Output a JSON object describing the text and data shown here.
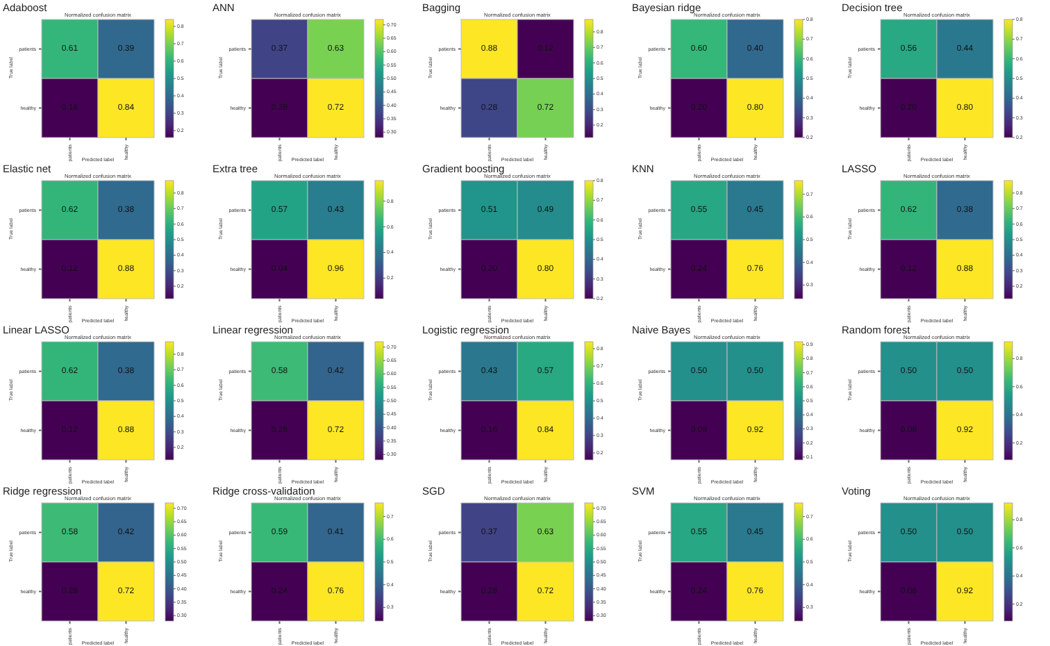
{
  "chart_data": [
    {
      "type": "heatmap",
      "title": "Adaboost",
      "subtitle": "Normalized confusion matrix",
      "xlabel": "Predicted label",
      "ylabel": "True label",
      "categories": [
        "patients",
        "healthy"
      ],
      "y_categories": [
        "patients",
        "healthy"
      ],
      "cells": [
        [
          0.61,
          0.39
        ],
        [
          0.16,
          0.84
        ]
      ],
      "cell_labels": [
        [
          "0.61",
          "0.39"
        ],
        [
          "0.16",
          "0.84"
        ]
      ],
      "clim": [
        0.16,
        0.84
      ],
      "cticks": [
        0.2,
        0.3,
        0.4,
        0.5,
        0.6,
        0.7,
        0.8
      ]
    },
    {
      "type": "heatmap",
      "title": "ANN",
      "subtitle": "Normalized confusion matrix",
      "xlabel": "Predicted label",
      "ylabel": "True label",
      "categories": [
        "patients",
        "healthy"
      ],
      "y_categories": [
        "patients",
        "healthy"
      ],
      "cells": [
        [
          0.37,
          0.63
        ],
        [
          0.28,
          0.72
        ]
      ],
      "cell_labels": [
        [
          "0.37",
          "0.63"
        ],
        [
          "0.28",
          "0.72"
        ]
      ],
      "clim": [
        0.28,
        0.72
      ],
      "cticks": [
        {
          "value": 0.3,
          "label": "0.30"
        },
        {
          "value": 0.35,
          "label": "0.35"
        },
        {
          "value": 0.4,
          "label": "0.40"
        },
        {
          "value": 0.45,
          "label": "0.45"
        },
        {
          "value": 0.5,
          "label": "0.50"
        },
        {
          "value": 0.55,
          "label": "0.55"
        },
        {
          "value": 0.6,
          "label": "0.60"
        },
        {
          "value": 0.65,
          "label": "0.65"
        },
        {
          "value": 0.7,
          "label": "0.70"
        }
      ]
    },
    {
      "type": "heatmap",
      "title": "Bagging",
      "subtitle": "Normalized confusion matrix",
      "xlabel": "Predicted label",
      "ylabel": "True label",
      "categories": [
        "patients",
        "healthy"
      ],
      "y_categories": [
        "patients",
        "healthy"
      ],
      "cells": [
        [
          0.88,
          0.12
        ],
        [
          0.28,
          0.72
        ]
      ],
      "cell_labels": [
        [
          "0.88",
          "0.12"
        ],
        [
          "0.28",
          "0.72"
        ]
      ],
      "clim": [
        0.12,
        0.88
      ],
      "cticks": [
        0.2,
        0.3,
        0.4,
        0.5,
        0.6,
        0.7,
        0.8
      ]
    },
    {
      "type": "heatmap",
      "title": "Bayesian ridge",
      "subtitle": "Normalized confusion matrix",
      "xlabel": "Predicted label",
      "ylabel": "True label",
      "categories": [
        "patients",
        "healthy"
      ],
      "y_categories": [
        "patients",
        "healthy"
      ],
      "cells": [
        [
          0.6,
          0.4
        ],
        [
          0.2,
          0.8
        ]
      ],
      "cell_labels": [
        [
          "0.60",
          "0.40"
        ],
        [
          "0.20",
          "0.80"
        ]
      ],
      "clim": [
        0.2,
        0.8
      ],
      "cticks": [
        0.2,
        0.3,
        0.4,
        0.5,
        0.6,
        0.7,
        0.8
      ]
    },
    {
      "type": "heatmap",
      "title": "Decision tree",
      "subtitle": "Normalized confusion matrix",
      "xlabel": "Predicted label",
      "ylabel": "True label",
      "categories": [
        "patients",
        "healthy"
      ],
      "y_categories": [
        "patients",
        "healthy"
      ],
      "cells": [
        [
          0.56,
          0.44
        ],
        [
          0.2,
          0.8
        ]
      ],
      "cell_labels": [
        [
          "0.56",
          "0.44"
        ],
        [
          "0.20",
          "0.80"
        ]
      ],
      "clim": [
        0.2,
        0.8
      ],
      "cticks": [
        0.2,
        0.3,
        0.4,
        0.5,
        0.6,
        0.7,
        0.8
      ]
    },
    {
      "type": "heatmap",
      "title": "Elastic net",
      "subtitle": "Normalized confusion matrix",
      "xlabel": "Predicted label",
      "ylabel": "True label",
      "categories": [
        "patients",
        "healthy"
      ],
      "y_categories": [
        "patients",
        "healthy"
      ],
      "cells": [
        [
          0.62,
          0.38
        ],
        [
          0.12,
          0.88
        ]
      ],
      "cell_labels": [
        [
          "0.62",
          "0.38"
        ],
        [
          "0.12",
          "0.88"
        ]
      ],
      "clim": [
        0.12,
        0.88
      ],
      "cticks": [
        0.2,
        0.3,
        0.4,
        0.5,
        0.6,
        0.7,
        0.8
      ]
    },
    {
      "type": "heatmap",
      "title": "Extra tree",
      "subtitle": "Normalized confusion matrix",
      "xlabel": "Predicted label",
      "ylabel": "True label",
      "categories": [
        "patients",
        "healthy"
      ],
      "y_categories": [
        "patients",
        "healthy"
      ],
      "cells": [
        [
          0.57,
          0.43
        ],
        [
          0.04,
          0.96
        ]
      ],
      "cell_labels": [
        [
          "0.57",
          "0.43"
        ],
        [
          "0.04",
          "0.96"
        ]
      ],
      "clim": [
        0.04,
        0.96
      ],
      "cticks": [
        0.2,
        0.4,
        0.6,
        0.8
      ]
    },
    {
      "type": "heatmap",
      "title": "Gradient boosting",
      "subtitle": "Normalized confusion matrix",
      "xlabel": "Predicted label",
      "ylabel": "True label",
      "categories": [
        "patients",
        "healthy"
      ],
      "y_categories": [
        "patients",
        "healthy"
      ],
      "cells": [
        [
          0.51,
          0.49
        ],
        [
          0.2,
          0.8
        ]
      ],
      "cell_labels": [
        [
          "0.51",
          "0.49"
        ],
        [
          "0.20",
          "0.80"
        ]
      ],
      "clim": [
        0.2,
        0.8
      ],
      "cticks": [
        0.2,
        0.3,
        0.4,
        0.5,
        0.6,
        0.7,
        0.8
      ]
    },
    {
      "type": "heatmap",
      "title": "KNN",
      "subtitle": "Normalized confusion matrix",
      "xlabel": "Predicted label",
      "ylabel": "True label",
      "categories": [
        "patients",
        "healthy"
      ],
      "y_categories": [
        "patients",
        "healthy"
      ],
      "cells": [
        [
          0.55,
          0.45
        ],
        [
          0.24,
          0.76
        ]
      ],
      "cell_labels": [
        [
          "0.55",
          "0.45"
        ],
        [
          "0.24",
          "0.76"
        ]
      ],
      "clim": [
        0.24,
        0.76
      ],
      "cticks": [
        0.3,
        0.4,
        0.5,
        0.6,
        0.7
      ]
    },
    {
      "type": "heatmap",
      "title": "LASSO",
      "subtitle": "Normalized confusion matrix",
      "xlabel": "Predicted label",
      "ylabel": "True label",
      "categories": [
        "patients",
        "healthy"
      ],
      "y_categories": [
        "patients",
        "healthy"
      ],
      "cells": [
        [
          0.62,
          0.38
        ],
        [
          0.12,
          0.88
        ]
      ],
      "cell_labels": [
        [
          "0.62",
          "0.38"
        ],
        [
          "0.12",
          "0.88"
        ]
      ],
      "clim": [
        0.12,
        0.88
      ],
      "cticks": [
        0.2,
        0.3,
        0.4,
        0.5,
        0.6,
        0.7,
        0.8
      ]
    },
    {
      "type": "heatmap",
      "title": "Linear LASSO",
      "subtitle": "Normalized confusion matrix",
      "xlabel": "Predicted label",
      "ylabel": "True label",
      "categories": [
        "patients",
        "healthy"
      ],
      "y_categories": [
        "patients",
        "healthy"
      ],
      "cells": [
        [
          0.62,
          0.38
        ],
        [
          0.12,
          0.88
        ]
      ],
      "cell_labels": [
        [
          "0.62",
          "0.38"
        ],
        [
          "0.12",
          "0.88"
        ]
      ],
      "clim": [
        0.12,
        0.88
      ],
      "cticks": [
        0.2,
        0.3,
        0.4,
        0.5,
        0.6,
        0.7,
        0.8
      ]
    },
    {
      "type": "heatmap",
      "title": "Linear regression",
      "subtitle": "Normalized confusion matrix",
      "xlabel": "Predicted label",
      "ylabel": "True label",
      "categories": [
        "patients",
        "healthy"
      ],
      "y_categories": [
        "patients",
        "healthy"
      ],
      "cells": [
        [
          0.58,
          0.42
        ],
        [
          0.28,
          0.72
        ]
      ],
      "cell_labels": [
        [
          "0.58",
          "0.42"
        ],
        [
          "0.28",
          "0.72"
        ]
      ],
      "clim": [
        0.28,
        0.72
      ],
      "cticks": [
        {
          "value": 0.3,
          "label": "0.30"
        },
        {
          "value": 0.35,
          "label": "0.35"
        },
        {
          "value": 0.4,
          "label": "0.40"
        },
        {
          "value": 0.45,
          "label": "0.45"
        },
        {
          "value": 0.5,
          "label": "0.50"
        },
        {
          "value": 0.55,
          "label": "0.55"
        },
        {
          "value": 0.6,
          "label": "0.60"
        },
        {
          "value": 0.65,
          "label": "0.65"
        },
        {
          "value": 0.7,
          "label": "0.70"
        }
      ]
    },
    {
      "type": "heatmap",
      "title": "Logistic regression",
      "subtitle": "Normalized confusion matrix",
      "xlabel": "Predicted label",
      "ylabel": "True label",
      "categories": [
        "patients",
        "healthy"
      ],
      "y_categories": [
        "patients",
        "healthy"
      ],
      "cells": [
        [
          0.43,
          0.57
        ],
        [
          0.16,
          0.84
        ]
      ],
      "cell_labels": [
        [
          "0.43",
          "0.57"
        ],
        [
          "0.16",
          "0.84"
        ]
      ],
      "clim": [
        0.16,
        0.84
      ],
      "cticks": [
        0.2,
        0.3,
        0.4,
        0.5,
        0.6,
        0.7,
        0.8
      ]
    },
    {
      "type": "heatmap",
      "title": "Naive Bayes",
      "subtitle": "Normalized confusion matrix",
      "xlabel": "Predicted label",
      "ylabel": "True label",
      "categories": [
        "patients",
        "healthy"
      ],
      "y_categories": [
        "patients",
        "healthy"
      ],
      "cells": [
        [
          0.5,
          0.5
        ],
        [
          0.08,
          0.92
        ]
      ],
      "cell_labels": [
        [
          "0.50",
          "0.50"
        ],
        [
          "0.08",
          "0.92"
        ]
      ],
      "clim": [
        0.08,
        0.92
      ],
      "cticks": [
        0.1,
        0.2,
        0.3,
        0.4,
        0.5,
        0.6,
        0.7,
        0.8,
        0.9
      ]
    },
    {
      "type": "heatmap",
      "title": "Random forest",
      "subtitle": "Normalized confusion matrix",
      "xlabel": "Predicted label",
      "ylabel": "True label",
      "categories": [
        "patients",
        "healthy"
      ],
      "y_categories": [
        "patients",
        "healthy"
      ],
      "cells": [
        [
          0.5,
          0.5
        ],
        [
          0.08,
          0.92
        ]
      ],
      "cell_labels": [
        [
          "0.50",
          "0.50"
        ],
        [
          "0.08",
          "0.92"
        ]
      ],
      "clim": [
        0.08,
        0.92
      ],
      "cticks": [
        0.2,
        0.4,
        0.6,
        0.8
      ]
    },
    {
      "type": "heatmap",
      "title": "Ridge regression",
      "subtitle": "Normalized confusion matrix",
      "xlabel": "Predicted label",
      "ylabel": "True label",
      "categories": [
        "patients",
        "healthy"
      ],
      "y_categories": [
        "patients",
        "healthy"
      ],
      "cells": [
        [
          0.58,
          0.42
        ],
        [
          0.28,
          0.72
        ]
      ],
      "cell_labels": [
        [
          "0.58",
          "0.42"
        ],
        [
          "0.28",
          "0.72"
        ]
      ],
      "clim": [
        0.28,
        0.72
      ],
      "cticks": [
        {
          "value": 0.3,
          "label": "0.30"
        },
        {
          "value": 0.35,
          "label": "0.35"
        },
        {
          "value": 0.4,
          "label": "0.40"
        },
        {
          "value": 0.45,
          "label": "0.45"
        },
        {
          "value": 0.5,
          "label": "0.50"
        },
        {
          "value": 0.55,
          "label": "0.55"
        },
        {
          "value": 0.6,
          "label": "0.60"
        },
        {
          "value": 0.65,
          "label": "0.65"
        },
        {
          "value": 0.7,
          "label": "0.70"
        }
      ]
    },
    {
      "type": "heatmap",
      "title": "Ridge cross-validation",
      "subtitle": "Normalized confusion matrix",
      "xlabel": "Predicted label",
      "ylabel": "True label",
      "categories": [
        "patients",
        "healthy"
      ],
      "y_categories": [
        "patients",
        "healthy"
      ],
      "cells": [
        [
          0.59,
          0.41
        ],
        [
          0.24,
          0.76
        ]
      ],
      "cell_labels": [
        [
          "0.59",
          "0.41"
        ],
        [
          "0.24",
          "0.76"
        ]
      ],
      "clim": [
        0.24,
        0.76
      ],
      "cticks": [
        0.3,
        0.4,
        0.5,
        0.6,
        0.7
      ]
    },
    {
      "type": "heatmap",
      "title": "SGD",
      "subtitle": "Normalized confusion matrix",
      "xlabel": "Predicted label",
      "ylabel": "True label",
      "categories": [
        "patients",
        "healthy"
      ],
      "y_categories": [
        "patients",
        "healthy"
      ],
      "cells": [
        [
          0.37,
          0.63
        ],
        [
          0.28,
          0.72
        ]
      ],
      "cell_labels": [
        [
          "0.37",
          "0.63"
        ],
        [
          "0.28",
          "0.72"
        ]
      ],
      "clim": [
        0.28,
        0.72
      ],
      "cticks": [
        {
          "value": 0.3,
          "label": "0.30"
        },
        {
          "value": 0.35,
          "label": "0.35"
        },
        {
          "value": 0.4,
          "label": "0.40"
        },
        {
          "value": 0.45,
          "label": "0.45"
        },
        {
          "value": 0.5,
          "label": "0.50"
        },
        {
          "value": 0.55,
          "label": "0.55"
        },
        {
          "value": 0.6,
          "label": "0.60"
        },
        {
          "value": 0.65,
          "label": "0.65"
        },
        {
          "value": 0.7,
          "label": "0.70"
        }
      ]
    },
    {
      "type": "heatmap",
      "title": "SVM",
      "subtitle": "Normalized confusion matrix",
      "xlabel": "Predicted label",
      "ylabel": "True label",
      "categories": [
        "patients",
        "healthy"
      ],
      "y_categories": [
        "patients",
        "healthy"
      ],
      "cells": [
        [
          0.55,
          0.45
        ],
        [
          0.24,
          0.76
        ]
      ],
      "cell_labels": [
        [
          "0.55",
          "0.45"
        ],
        [
          "0.24",
          "0.76"
        ]
      ],
      "clim": [
        0.24,
        0.76
      ],
      "cticks": [
        0.3,
        0.4,
        0.5,
        0.6,
        0.7
      ]
    },
    {
      "type": "heatmap",
      "title": "Voting",
      "subtitle": "Normalized confusion matrix",
      "xlabel": "Predicted label",
      "ylabel": "True label",
      "categories": [
        "patients",
        "healthy"
      ],
      "y_categories": [
        "patients",
        "healthy"
      ],
      "cells": [
        [
          0.5,
          0.5
        ],
        [
          0.08,
          0.92
        ]
      ],
      "cell_labels": [
        [
          "0.50",
          "0.50"
        ],
        [
          "0.08",
          "0.92"
        ]
      ],
      "clim": [
        0.08,
        0.92
      ],
      "cticks": [
        0.2,
        0.4,
        0.6,
        0.8
      ]
    }
  ]
}
